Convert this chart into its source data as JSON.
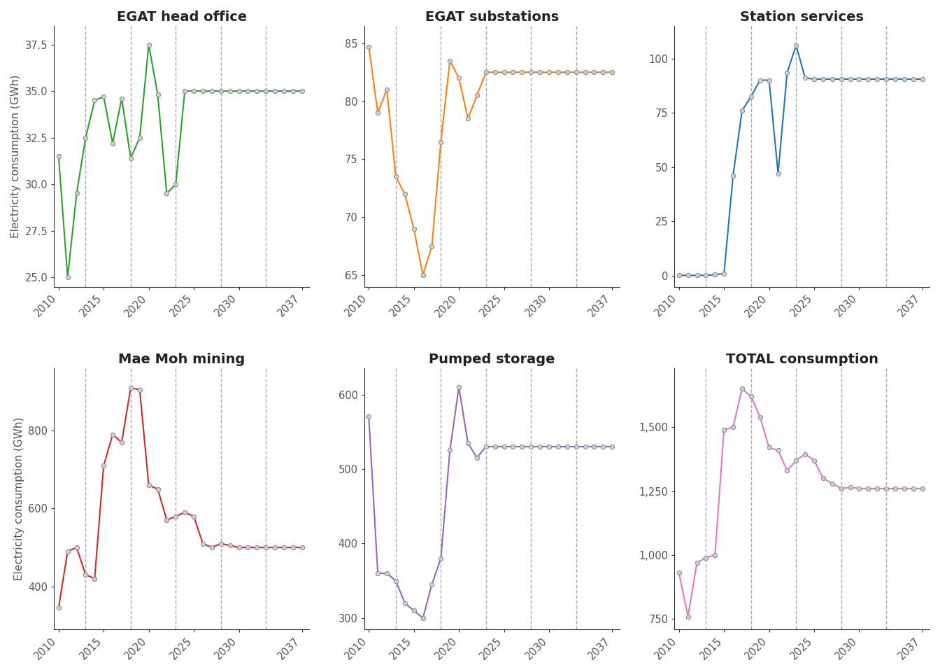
{
  "subplots": [
    {
      "title": "EGAT head office",
      "color": "#2ca02c",
      "years": [
        2010,
        2011,
        2012,
        2013,
        2014,
        2015,
        2016,
        2017,
        2018,
        2019,
        2020,
        2021,
        2022,
        2023,
        2024,
        2025,
        2026,
        2027,
        2028,
        2029,
        2030,
        2031,
        2032,
        2033,
        2034,
        2035,
        2036,
        2037
      ],
      "values": [
        31.5,
        25.0,
        29.5,
        32.5,
        34.5,
        34.7,
        32.2,
        34.6,
        31.4,
        32.5,
        37.5,
        34.8,
        29.5,
        30.0,
        35.0,
        35.0,
        35.0,
        35.0,
        35.0,
        35.0,
        35.0,
        35.0,
        35.0,
        35.0,
        35.0,
        35.0,
        35.0,
        35.0
      ],
      "ylim": [
        24.5,
        38.5
      ],
      "yticks": [
        25.0,
        27.5,
        30.0,
        32.5,
        35.0,
        37.5
      ]
    },
    {
      "title": "EGAT substations",
      "color": "#ff7f0e",
      "years": [
        2010,
        2011,
        2012,
        2013,
        2014,
        2015,
        2016,
        2017,
        2018,
        2019,
        2020,
        2021,
        2022,
        2023,
        2024,
        2025,
        2026,
        2027,
        2028,
        2029,
        2030,
        2031,
        2032,
        2033,
        2034,
        2035,
        2036,
        2037
      ],
      "values": [
        84.7,
        79.0,
        81.0,
        73.5,
        72.0,
        69.0,
        65.0,
        67.5,
        76.5,
        83.5,
        82.0,
        78.5,
        80.5,
        82.5,
        82.5,
        82.5,
        82.5,
        82.5,
        82.5,
        82.5,
        82.5,
        82.5,
        82.5,
        82.5,
        82.5,
        82.5,
        82.5,
        82.5
      ],
      "ylim": [
        64.0,
        86.5
      ],
      "yticks": [
        65,
        70,
        75,
        80,
        85
      ]
    },
    {
      "title": "Station services",
      "color": "#1f77b4",
      "years": [
        2010,
        2011,
        2012,
        2013,
        2014,
        2015,
        2016,
        2017,
        2018,
        2019,
        2020,
        2021,
        2022,
        2023,
        2024,
        2025,
        2026,
        2027,
        2028,
        2029,
        2030,
        2031,
        2032,
        2033,
        2034,
        2035,
        2036,
        2037
      ],
      "values": [
        0.2,
        0.2,
        0.2,
        0.2,
        0.5,
        1.0,
        46.0,
        76.0,
        82.5,
        90.0,
        90.0,
        47.0,
        93.5,
        106.0,
        91.0,
        90.5,
        90.5,
        90.5,
        90.5,
        90.5,
        90.5,
        90.5,
        90.5,
        90.5,
        90.5,
        90.5,
        90.5,
        90.5
      ],
      "ylim": [
        -5,
        115
      ],
      "yticks": [
        0,
        25,
        50,
        75,
        100
      ]
    },
    {
      "title": "Mae Moh mining",
      "color": "#d62728",
      "years": [
        2010,
        2011,
        2012,
        2013,
        2014,
        2015,
        2016,
        2017,
        2018,
        2019,
        2020,
        2021,
        2022,
        2023,
        2024,
        2025,
        2026,
        2027,
        2028,
        2029,
        2030,
        2031,
        2032,
        2033,
        2034,
        2035,
        2036,
        2037
      ],
      "values": [
        345,
        490,
        500,
        430,
        420,
        710,
        790,
        770,
        910,
        905,
        660,
        650,
        570,
        580,
        590,
        580,
        510,
        500,
        510,
        505,
        500,
        500,
        500,
        500,
        500,
        500,
        500,
        500
      ],
      "ylim": [
        290,
        960
      ],
      "yticks": [
        400,
        600,
        800
      ]
    },
    {
      "title": "Pumped storage",
      "color": "#9467bd",
      "years": [
        2010,
        2011,
        2012,
        2013,
        2014,
        2015,
        2016,
        2017,
        2018,
        2019,
        2020,
        2021,
        2022,
        2023,
        2024,
        2025,
        2026,
        2027,
        2028,
        2029,
        2030,
        2031,
        2032,
        2033,
        2034,
        2035,
        2036,
        2037
      ],
      "values": [
        570,
        360,
        360,
        350,
        320,
        310,
        300,
        345,
        380,
        525,
        610,
        535,
        515,
        530,
        530,
        530,
        530,
        530,
        530,
        530,
        530,
        530,
        530,
        530,
        530,
        530,
        530,
        530
      ],
      "ylim": [
        285,
        635
      ],
      "yticks": [
        300,
        400,
        500,
        600
      ]
    },
    {
      "title": "TOTAL consumption",
      "color": "#e377c2",
      "years": [
        2010,
        2011,
        2012,
        2013,
        2014,
        2015,
        2016,
        2017,
        2018,
        2019,
        2020,
        2021,
        2022,
        2023,
        2024,
        2025,
        2026,
        2027,
        2028,
        2029,
        2030,
        2031,
        2032,
        2033,
        2034,
        2035,
        2036,
        2037
      ],
      "values": [
        930,
        760,
        970,
        990,
        1000,
        1490,
        1500,
        1650,
        1620,
        1540,
        1420,
        1410,
        1330,
        1370,
        1395,
        1370,
        1300,
        1280,
        1260,
        1265,
        1260,
        1260,
        1260,
        1260,
        1260,
        1260,
        1260,
        1260
      ],
      "ylim": [
        710,
        1730
      ],
      "yticks": [
        750,
        1000,
        1250,
        1500
      ]
    }
  ],
  "dashed_years": [
    2013,
    2018,
    2023,
    2028,
    2033
  ],
  "x_ticks": [
    2010,
    2015,
    2020,
    2025,
    2030,
    2037
  ],
  "ylabel": "Electricity consumption (GWh)",
  "marker": "o",
  "marker_facecolor": "#d0d0d0",
  "marker_edgecolor": "#909090",
  "marker_size": 4.5,
  "marker_edge_width": 0.8,
  "line_width": 1.5,
  "background_color": "#ffffff",
  "title_fontsize": 14,
  "tick_fontsize": 10.5,
  "ylabel_fontsize": 11,
  "tick_color": "#555555",
  "spine_color": "#333333",
  "dash_color": "#aaaaaa",
  "dash_lw": 1.0
}
